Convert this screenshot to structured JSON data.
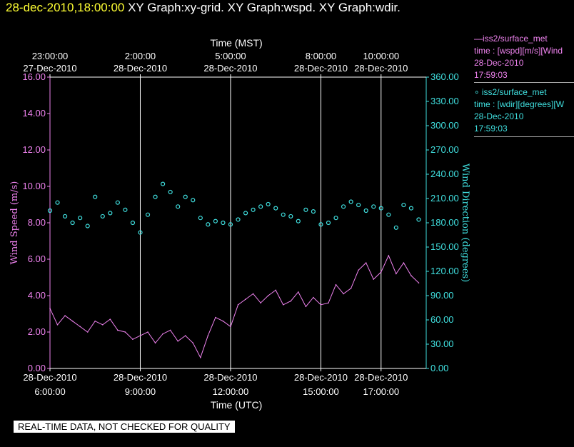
{
  "header": {
    "timestamp": "28-dec-2010,18:00:00",
    "graphs": "XY Graph:xy-grid.  XY Graph:wspd.  XY Graph:wdir."
  },
  "legend": {
    "wspd": {
      "line1": "—iss2/surface_met",
      "line2": "time : [wspd][m/s][Wind",
      "line3": "28-Dec-2010",
      "line4": "17:59:03"
    },
    "wdir": {
      "line1": "∘ iss2/surface_met",
      "line2": "time : [wdir][degrees][W",
      "line3": "28-Dec-2010",
      "line4": "17:59:03"
    }
  },
  "note": "REAL-TIME DATA, NOT CHECKED FOR QUALITY",
  "colors": {
    "speed": "#ee82ee",
    "direction": "#40e0e0",
    "grid": "#ffffff",
    "background": "#000000"
  },
  "chart_data": {
    "type": "line",
    "xlabel_bottom": "Time (UTC)",
    "xlabel_top": "Time (MST)",
    "ylabel_left": "Wind Speed (m/s)",
    "ylabel_right": "Wind Direction (degrees)",
    "xlim_utc_hours": [
      6.0,
      18.5
    ],
    "ylim_left": [
      0,
      16
    ],
    "ylim_right": [
      0,
      360
    ],
    "left_ticks": [
      "0.00",
      "2.00",
      "4.00",
      "6.00",
      "8.00",
      "10.00",
      "12.00",
      "14.00",
      "16.00"
    ],
    "right_ticks": [
      "0.00",
      "30.00",
      "60.00",
      "90.00",
      "120.00",
      "150.00",
      "180.00",
      "210.00",
      "240.00",
      "270.00",
      "300.00",
      "330.00",
      "360.00"
    ],
    "bottom_ticks": [
      {
        "hour": 6,
        "date": "28-Dec-2010",
        "time": "6:00:00"
      },
      {
        "hour": 9,
        "date": "28-Dec-2010",
        "time": "9:00:00"
      },
      {
        "hour": 12,
        "date": "28-Dec-2010",
        "time": "12:00:00"
      },
      {
        "hour": 15,
        "date": "28-Dec-2010",
        "time": "15:00:00"
      },
      {
        "hour": 17,
        "date": "28-Dec-2010",
        "time": "17:00:00"
      }
    ],
    "top_ticks": [
      {
        "hour": 6,
        "time": "23:00:00",
        "date": "27-Dec-2010"
      },
      {
        "hour": 9,
        "time": "2:00:00",
        "date": "28-Dec-2010"
      },
      {
        "hour": 12,
        "time": "5:00:00",
        "date": "28-Dec-2010"
      },
      {
        "hour": 15,
        "time": "8:00:00",
        "date": "28-Dec-2010"
      },
      {
        "hour": 17,
        "time": "10:00:00",
        "date": "28-Dec-2010"
      }
    ],
    "grid_hours": [
      9,
      12,
      15,
      17
    ],
    "series": [
      {
        "name": "iss2/surface_met time : [wspd][m/s]",
        "axis": "left",
        "style": "line",
        "x": [
          6.0,
          6.25,
          6.5,
          6.75,
          7.0,
          7.25,
          7.5,
          7.75,
          8.0,
          8.25,
          8.5,
          8.75,
          9.0,
          9.25,
          9.5,
          9.75,
          10.0,
          10.25,
          10.5,
          10.75,
          11.0,
          11.25,
          11.5,
          11.75,
          12.0,
          12.25,
          12.5,
          12.75,
          13.0,
          13.25,
          13.5,
          13.75,
          14.0,
          14.25,
          14.5,
          14.75,
          15.0,
          15.25,
          15.5,
          15.75,
          16.0,
          16.25,
          16.5,
          16.75,
          17.0,
          17.25,
          17.5,
          17.75,
          18.0,
          18.25
        ],
        "y": [
          3.3,
          2.4,
          2.9,
          2.6,
          2.3,
          2.0,
          2.6,
          2.4,
          2.7,
          2.1,
          2.0,
          1.6,
          1.8,
          2.0,
          1.4,
          1.9,
          2.1,
          1.5,
          1.8,
          1.4,
          0.6,
          1.8,
          2.8,
          2.6,
          2.3,
          3.5,
          3.8,
          4.1,
          3.6,
          4.0,
          4.3,
          3.5,
          3.7,
          4.2,
          3.4,
          3.9,
          3.5,
          3.6,
          4.6,
          4.1,
          4.4,
          5.4,
          5.8,
          4.9,
          5.3,
          6.2,
          5.2,
          5.8,
          5.1,
          4.7
        ]
      },
      {
        "name": "iss2/surface_met time : [wdir][degrees]",
        "axis": "right",
        "style": "circle",
        "x": [
          6.0,
          6.25,
          6.5,
          6.75,
          7.0,
          7.25,
          7.5,
          7.75,
          8.0,
          8.25,
          8.5,
          8.75,
          9.0,
          9.25,
          9.5,
          9.75,
          10.0,
          10.25,
          10.5,
          10.75,
          11.0,
          11.25,
          11.5,
          11.75,
          12.0,
          12.25,
          12.5,
          12.75,
          13.0,
          13.25,
          13.5,
          13.75,
          14.0,
          14.25,
          14.5,
          14.75,
          15.0,
          15.25,
          15.5,
          15.75,
          16.0,
          16.25,
          16.5,
          16.75,
          17.0,
          17.25,
          17.5,
          17.75,
          18.0,
          18.25
        ],
        "y": [
          195,
          205,
          188,
          180,
          186,
          176,
          212,
          188,
          192,
          205,
          196,
          180,
          168,
          190,
          212,
          228,
          218,
          200,
          212,
          208,
          186,
          178,
          182,
          180,
          178,
          184,
          192,
          196,
          200,
          203,
          198,
          190,
          188,
          182,
          196,
          194,
          178,
          180,
          186,
          200,
          206,
          202,
          195,
          200,
          198,
          190,
          174,
          202,
          198,
          184
        ]
      }
    ]
  }
}
